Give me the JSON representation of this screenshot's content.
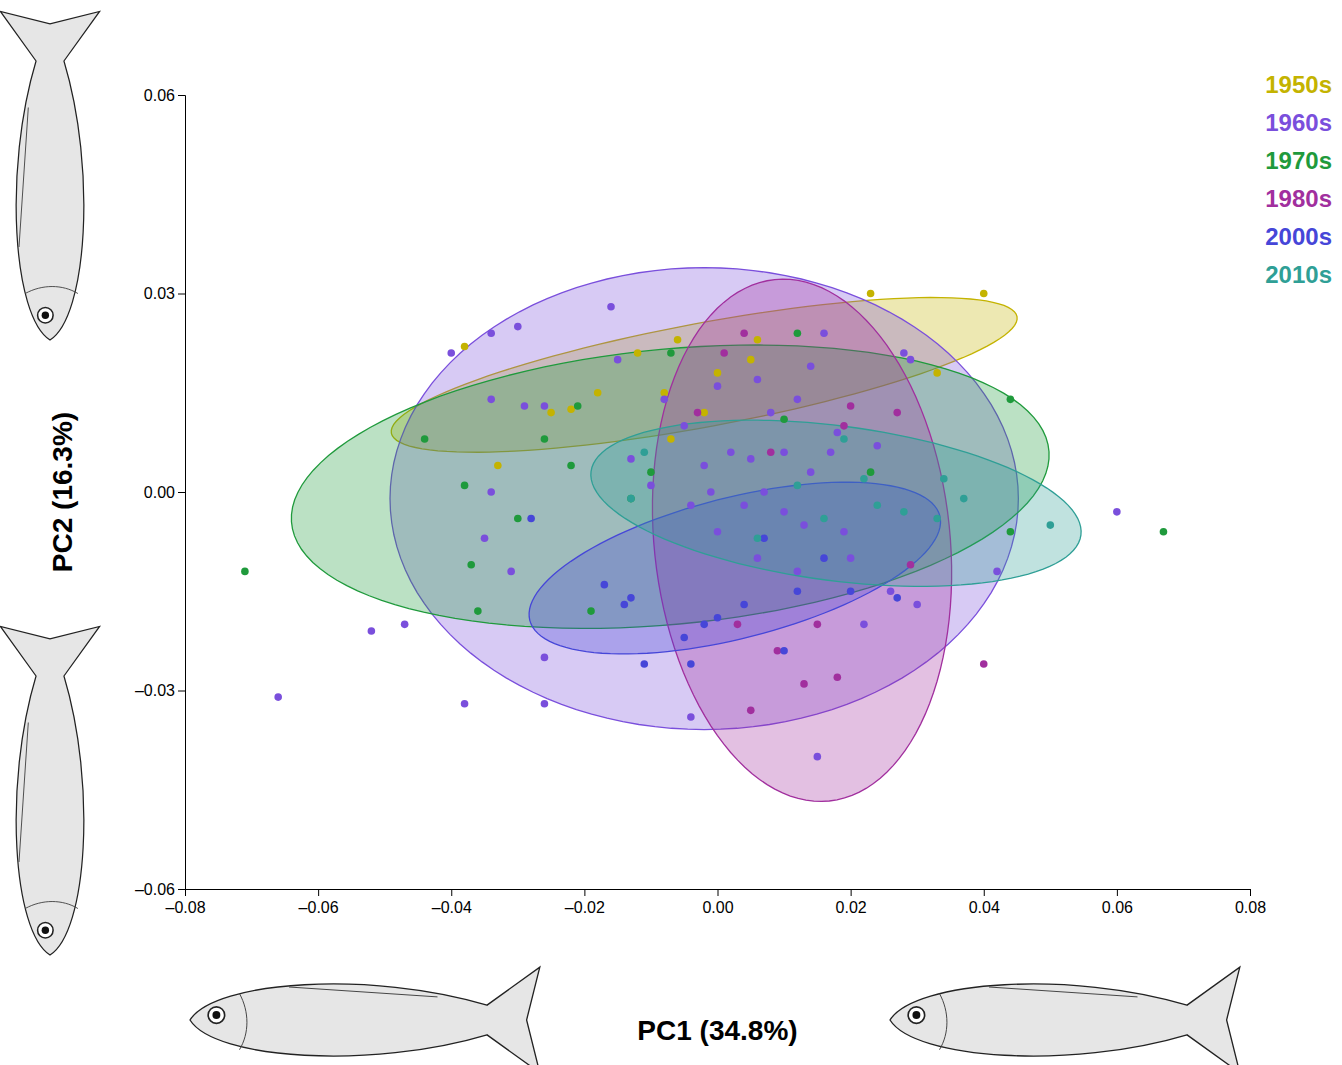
{
  "chart_data": {
    "type": "scatter",
    "x_label": "PC1 (34.8%)",
    "y_label": "PC2 (16.3%)",
    "xlim": [
      -0.08,
      0.08
    ],
    "ylim": [
      -0.06,
      0.06
    ],
    "xticks": [
      {
        "value": -0.08,
        "label": "–0.08"
      },
      {
        "value": -0.06,
        "label": "–0.06"
      },
      {
        "value": -0.04,
        "label": "–0.04"
      },
      {
        "value": -0.02,
        "label": "–0.02"
      },
      {
        "value": 0,
        "label": "0.00"
      },
      {
        "value": 0.02,
        "label": "0.02"
      },
      {
        "value": 0.04,
        "label": "0.04"
      },
      {
        "value": 0.06,
        "label": "0.06"
      },
      {
        "value": 0.08,
        "label": "0.08"
      }
    ],
    "yticks": [
      {
        "value": -0.06,
        "label": "–0.06"
      },
      {
        "value": -0.03,
        "label": "–0.03"
      },
      {
        "value": 0,
        "label": "0.00"
      },
      {
        "value": 0.03,
        "label": "0.03"
      },
      {
        "value": 0.06,
        "label": "0.06"
      }
    ],
    "legend": "top-right",
    "grid": false,
    "series": [
      {
        "name": "1950s",
        "color": "#c4b300",
        "ellipse": {
          "center": [
            -0.002,
            0.0177
          ],
          "axis1": [
            0.047,
            0.0088
          ],
          "axis2": [
            0.0014,
            -0.0077
          ]
        },
        "x": [
          -0.038,
          0.023,
          0.04,
          -0.006,
          -0.022,
          -0.025,
          0.006,
          -0.033,
          0.033,
          -0.012,
          -0.018,
          -0.008,
          -0.002,
          0.005,
          -0.007,
          0.0
        ],
        "y": [
          0.022,
          0.03,
          0.03,
          0.023,
          0.0125,
          0.012,
          0.023,
          0.004,
          0.018,
          0.021,
          0.015,
          0.015,
          0.012,
          0.02,
          0.008,
          0.018
        ]
      },
      {
        "name": "1960s",
        "color": "#7a4fdc",
        "ellipse": {
          "center": [
            -0.002,
            -0.001
          ],
          "axis1": [
            0.0472,
            0
          ],
          "axis2": [
            0,
            0.0349
          ]
        },
        "x": [
          -0.034,
          -0.029,
          -0.026,
          -0.034,
          -0.035,
          -0.031,
          -0.015,
          -0.008,
          -0.005,
          0.0,
          0.006,
          0.012,
          0.014,
          0.016,
          0.028,
          0.029,
          -0.002,
          0.002,
          0.01,
          0.014,
          0.017,
          0.007,
          0.004,
          0.01,
          0.013,
          0.019,
          -0.004,
          0.0,
          0.006,
          0.012,
          0.02,
          0.026,
          0.022,
          0.03,
          -0.013,
          -0.001,
          0.008,
          0.018,
          0.024,
          0.005,
          -0.01,
          -0.026,
          0.015,
          -0.066,
          -0.052,
          -0.047,
          -0.038,
          -0.016,
          -0.034,
          -0.03,
          -0.04,
          -0.026,
          -0.004,
          0.06,
          0.042
        ],
        "y": [
          0.014,
          0.013,
          0.013,
          0.0,
          -0.007,
          -0.012,
          0.02,
          0.014,
          0.01,
          0.016,
          0.017,
          0.014,
          0.019,
          0.024,
          0.021,
          0.02,
          0.004,
          0.006,
          0.006,
          0.003,
          0.006,
          0.0,
          -0.002,
          -0.003,
          -0.005,
          -0.006,
          -0.002,
          -0.006,
          -0.01,
          -0.012,
          -0.01,
          -0.015,
          -0.02,
          -0.017,
          0.005,
          0.0,
          0.012,
          0.009,
          0.007,
          0.005,
          0.001,
          -0.025,
          -0.04,
          -0.031,
          -0.021,
          -0.02,
          -0.032,
          0.028,
          0.024,
          0.025,
          0.021,
          -0.032,
          -0.034,
          -0.003,
          -0.012
        ]
      },
      {
        "name": "1970s",
        "color": "#1f9a3c",
        "ellipse": {
          "center": [
            -0.0071,
            0.0008
          ],
          "axis1": [
            0.0569,
            0.0042
          ],
          "axis2": [
            0.0016,
            0.021
          ]
        },
        "x": [
          -0.071,
          0.067,
          0.044,
          0.044,
          -0.044,
          -0.038,
          -0.037,
          -0.036,
          -0.03,
          -0.026,
          -0.021,
          -0.022,
          -0.019,
          -0.013,
          -0.01,
          0.012,
          0.01,
          -0.007,
          0.023
        ],
        "y": [
          -0.012,
          -0.006,
          0.014,
          -0.006,
          0.008,
          0.001,
          -0.011,
          -0.018,
          -0.004,
          0.008,
          0.013,
          0.004,
          -0.018,
          -0.001,
          0.003,
          0.024,
          0.011,
          0.021,
          0.003
        ]
      },
      {
        "name": "1980s",
        "color": "#a12f9e",
        "ellipse": {
          "center": [
            0.0127,
            -0.0073
          ],
          "axis1": [
            -0.0041,
            0.0394
          ],
          "axis2": [
            0.0221,
            0.0023
          ]
        },
        "x": [
          0.04,
          0.005,
          0.013,
          0.018,
          0.019,
          0.015,
          0.008,
          0.004,
          0.02,
          0.027,
          0.029,
          0.003,
          0.009,
          0.001,
          -0.003
        ],
        "y": [
          -0.026,
          -0.033,
          -0.029,
          -0.028,
          0.01,
          -0.02,
          0.006,
          0.024,
          0.013,
          0.012,
          -0.011,
          -0.02,
          -0.024,
          0.021,
          0.012
        ]
      },
      {
        "name": "2000s",
        "color": "#4646d8",
        "ellipse": {
          "center": [
            0.0026,
            -0.0115
          ],
          "axis1": [
            0.0308,
            0.0079
          ],
          "axis2": [
            0.0026,
            -0.0103
          ]
        },
        "x": [
          -0.028,
          -0.017,
          -0.014,
          -0.011,
          -0.005,
          -0.004,
          0.004,
          0.01,
          0.012,
          0.02,
          0.027,
          -0.002,
          0.0,
          0.016,
          0.007,
          -0.013
        ],
        "y": [
          -0.004,
          -0.014,
          -0.017,
          -0.026,
          -0.022,
          -0.026,
          -0.017,
          -0.024,
          -0.015,
          -0.015,
          -0.016,
          -0.02,
          -0.019,
          -0.01,
          -0.007,
          -0.016
        ]
      },
      {
        "name": "2010s",
        "color": "#2f9f96",
        "ellipse": {
          "center": [
            0.0178,
            -0.0017
          ],
          "axis1": [
            0.0368,
            -0.0048
          ],
          "axis2": [
            -0.0015,
            -0.0116
          ]
        },
        "x": [
          0.05,
          0.034,
          0.037,
          0.033,
          0.022,
          0.024,
          -0.011,
          -0.013,
          0.006,
          0.012,
          0.016,
          0.019,
          0.028
        ],
        "y": [
          -0.005,
          0.002,
          -0.001,
          -0.004,
          0.002,
          -0.002,
          0.006,
          -0.001,
          -0.007,
          0.001,
          -0.004,
          0.008,
          -0.003
        ]
      }
    ]
  }
}
